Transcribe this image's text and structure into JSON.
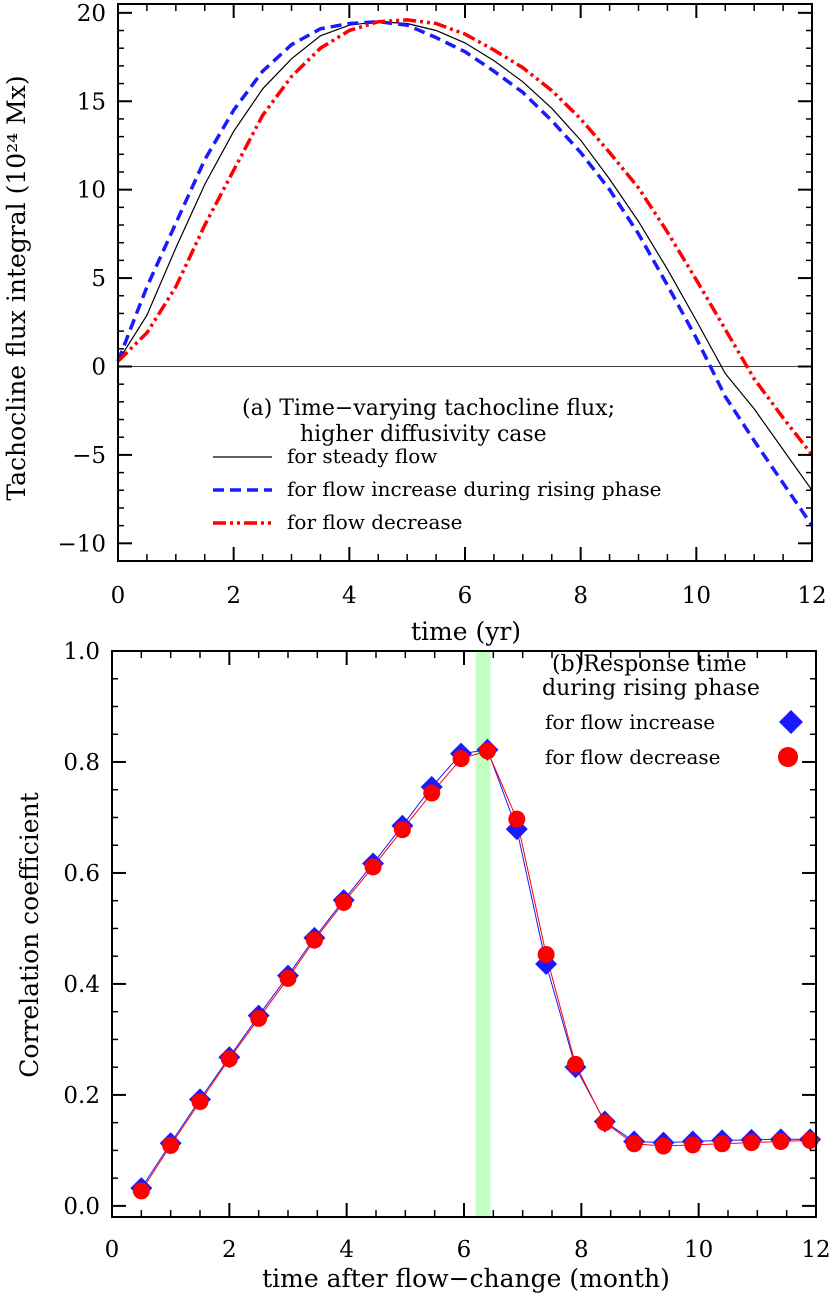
{
  "chart_data": [
    {
      "panel": "a",
      "type": "line",
      "annotation": [
        "(a) Time−varying tachocline flux;",
        "higher diffusivity case"
      ],
      "xlabel": "time (yr)",
      "ylabel": "Tachocline flux integral (10²⁴ Mx)",
      "xlim": [
        0,
        12
      ],
      "ylim": [
        -11,
        20.5
      ],
      "xticks": [
        0,
        2,
        4,
        6,
        8,
        10,
        12
      ],
      "yticks": [
        -10,
        -5,
        0,
        5,
        10,
        15,
        20
      ],
      "x": [
        0,
        0.5,
        1,
        1.5,
        2,
        2.5,
        3,
        3.5,
        4,
        4.5,
        5,
        5.5,
        6,
        6.5,
        7,
        7.5,
        8,
        8.5,
        9,
        9.5,
        10,
        10.5,
        11,
        11.5,
        12
      ],
      "series": [
        {
          "name": "for steady flow",
          "color": "#000000",
          "style": "solid",
          "values": [
            0.3,
            2.9,
            6.7,
            10.3,
            13.3,
            15.7,
            17.4,
            18.7,
            19.3,
            19.5,
            19.4,
            19.0,
            18.3,
            17.3,
            16.1,
            14.6,
            12.8,
            10.6,
            8.2,
            5.5,
            2.6,
            -0.4,
            -2.4,
            -4.7,
            -7.0
          ]
        },
        {
          "name": "for flow increase during rising phase",
          "color": "#1a1aff",
          "style": "dashed",
          "values": [
            0.3,
            4.5,
            8.1,
            11.7,
            14.5,
            16.7,
            18.2,
            19.1,
            19.4,
            19.5,
            19.3,
            18.6,
            17.8,
            16.7,
            15.5,
            13.9,
            12.1,
            10.0,
            7.5,
            4.6,
            1.6,
            -1.7,
            -4.2,
            -6.6,
            -9.0
          ]
        },
        {
          "name": "for flow decrease",
          "color": "#ff0000",
          "style": "dash-dot-dot",
          "values": [
            0.3,
            1.9,
            4.5,
            8.0,
            11.1,
            14.2,
            16.4,
            18.0,
            19.0,
            19.5,
            19.6,
            19.4,
            18.8,
            17.9,
            16.9,
            15.6,
            14.0,
            12.1,
            10.1,
            7.6,
            4.9,
            2.1,
            -0.7,
            -2.9,
            -5.0
          ]
        }
      ]
    },
    {
      "panel": "b",
      "type": "scatter",
      "annotation": [
        "(b)Response time",
        "during rising phase"
      ],
      "xlabel": "time after flow−change (month)",
      "ylabel": "Correlation coefficient",
      "xlim": [
        0,
        12
      ],
      "ylim": [
        -0.02,
        1.0
      ],
      "xticks": [
        0,
        2,
        4,
        6,
        8,
        10,
        12
      ],
      "yticks": [
        "0.0",
        "0.2",
        "0.4",
        "0.6",
        "0.8",
        "1.0"
      ],
      "highlight_band": {
        "from": 6.2,
        "to": 6.45,
        "color": "#c2ffc2"
      },
      "x": [
        0.5,
        1.0,
        1.5,
        2.0,
        2.5,
        3.0,
        3.45,
        3.95,
        4.45,
        4.95,
        5.45,
        5.95,
        6.4,
        6.9,
        7.4,
        7.9,
        8.4,
        8.9,
        9.4,
        9.9,
        10.4,
        10.9,
        11.4,
        11.9
      ],
      "series": [
        {
          "name": "for flow increase",
          "color": "#1a1aff",
          "marker": "diamond",
          "values": [
            0.032,
            0.113,
            0.192,
            0.268,
            0.343,
            0.415,
            0.483,
            0.551,
            0.617,
            0.685,
            0.755,
            0.815,
            0.822,
            0.679,
            0.436,
            0.25,
            0.152,
            0.116,
            0.114,
            0.116,
            0.118,
            0.119,
            0.12,
            0.12
          ]
        },
        {
          "name": "for flow decrease",
          "color": "#ff0000",
          "marker": "circle",
          "values": [
            0.027,
            0.109,
            0.188,
            0.265,
            0.338,
            0.41,
            0.479,
            0.547,
            0.611,
            0.678,
            0.744,
            0.806,
            0.82,
            0.697,
            0.453,
            0.255,
            0.15,
            0.112,
            0.108,
            0.11,
            0.112,
            0.114,
            0.116,
            0.118
          ]
        }
      ]
    }
  ]
}
